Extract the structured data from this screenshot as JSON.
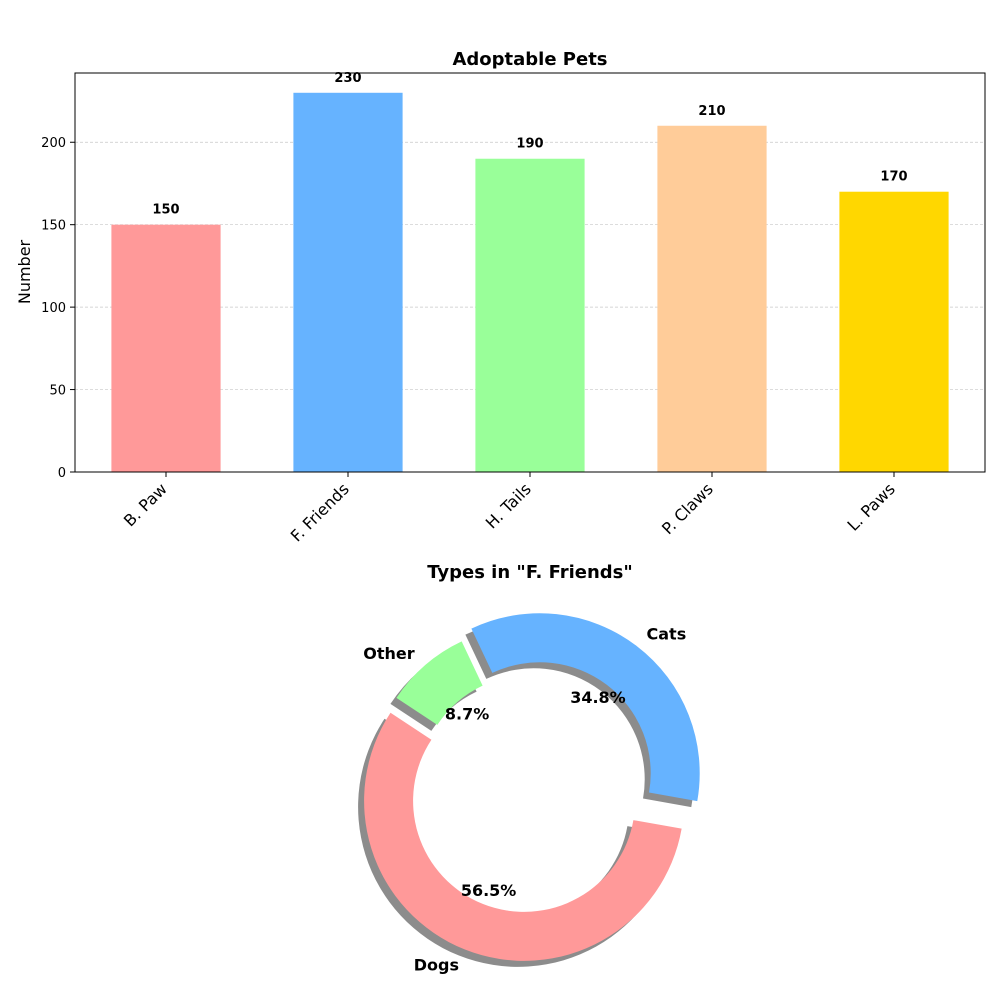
{
  "chart_data": [
    {
      "type": "bar",
      "title": "Adoptable Pets",
      "xlabel": "",
      "ylabel": "Number",
      "categories": [
        "B. Paw",
        "F. Friends",
        "H. Tails",
        "P. Claws",
        "L. Paws"
      ],
      "values": [
        150,
        230,
        190,
        210,
        170
      ],
      "colors": [
        "#ff9999",
        "#66b3ff",
        "#99ff99",
        "#ffcc99",
        "#ffd700"
      ],
      "ylim": [
        0,
        242
      ],
      "yticks": [
        0,
        50,
        100,
        150,
        200
      ],
      "grid": "y-dashed"
    },
    {
      "type": "pie",
      "style": "donut",
      "title": "Types in \"F. Friends\"",
      "labels": [
        "Cats",
        "Other",
        "Dogs"
      ],
      "values": [
        34.8,
        8.7,
        56.5
      ],
      "percent_labels": [
        "34.8%",
        "8.7%",
        "56.5%"
      ],
      "colors": [
        "#66b3ff",
        "#99ff99",
        "#ff9999"
      ],
      "exploded": [
        true,
        false,
        true
      ],
      "shadow": true
    }
  ]
}
